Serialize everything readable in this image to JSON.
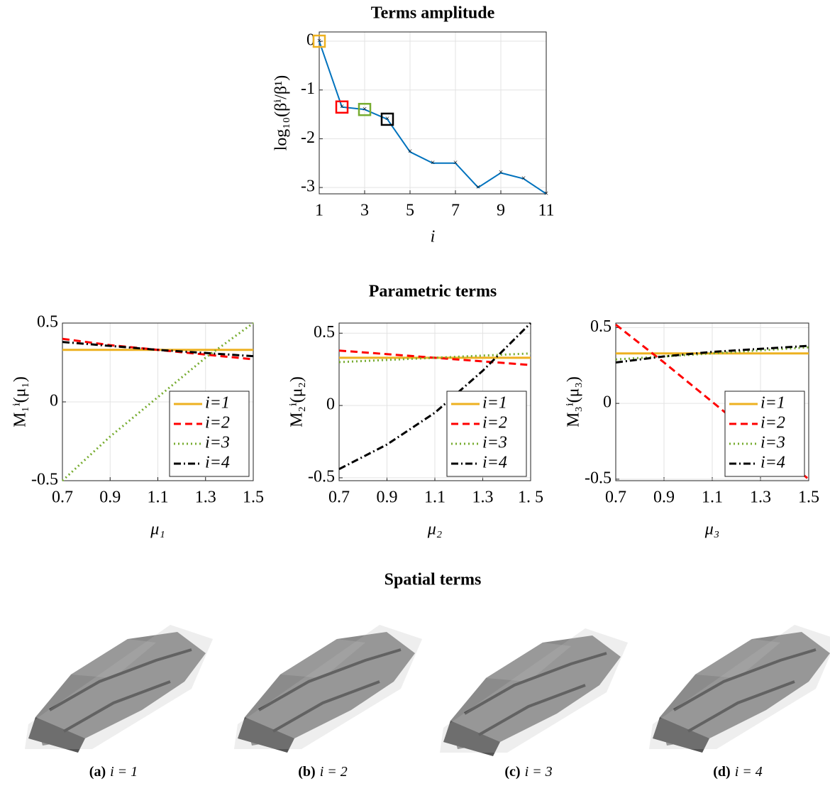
{
  "chart_data": [
    {
      "type": "line",
      "title": "Terms amplitude",
      "xlabel": "i",
      "ylabel": "log₁₀(βⁱ/β¹)",
      "x": [
        1,
        2,
        3,
        4,
        5,
        6,
        7,
        8,
        9,
        10,
        11
      ],
      "series": [
        {
          "color": "#0072bd",
          "values": [
            0,
            -1.35,
            -1.4,
            -1.6,
            -2.27,
            -2.5,
            -2.5,
            -3.0,
            -2.7,
            -2.82,
            -3.13
          ]
        }
      ],
      "highlight_colors": [
        "#edb120",
        "#ff0000",
        "#77ac30",
        "#000000"
      ],
      "xlim": [
        1,
        11
      ],
      "xticks": [
        1,
        3,
        5,
        7,
        9,
        11
      ],
      "ylim": [
        -3.13,
        0.19
      ],
      "yticks": [
        0,
        -1,
        -2,
        -3
      ],
      "grid": true
    },
    {
      "type": "line",
      "xlabel": "μ₁",
      "ylabel": "M₁ⁱ(μ₁)",
      "x": [
        0.7,
        0.9,
        1.1,
        1.3,
        1.5
      ],
      "series": [
        {
          "name": "i=1",
          "color": "#edb120",
          "style": "solid",
          "values": [
            0.33,
            0.33,
            0.33,
            0.33,
            0.33
          ]
        },
        {
          "name": "i=2",
          "color": "#ff0000",
          "style": "dashed",
          "values": [
            0.4,
            0.36,
            0.33,
            0.3,
            0.27
          ]
        },
        {
          "name": "i=3",
          "color": "#77ac30",
          "style": "dotted",
          "values": [
            -0.5,
            -0.22,
            0.03,
            0.28,
            0.5
          ]
        },
        {
          "name": "i=4",
          "color": "#000000",
          "style": "dashdot",
          "values": [
            0.38,
            0.355,
            0.33,
            0.31,
            0.29
          ]
        }
      ],
      "xlim": [
        0.7,
        1.5
      ],
      "xticks": [
        0.7,
        0.9,
        1.1,
        1.3,
        1.5
      ],
      "ylim": [
        -0.5,
        0.5
      ],
      "yticks": [
        0.5,
        0,
        -0.5
      ],
      "grid": true,
      "legend": "lower right"
    },
    {
      "type": "line",
      "xlabel": "μ₂",
      "ylabel": "M₂ⁱ(μ₂)",
      "x": [
        0.7,
        0.9,
        1.1,
        1.3,
        1.5
      ],
      "series": [
        {
          "name": "i=1",
          "color": "#edb120",
          "style": "solid",
          "values": [
            0.33,
            0.33,
            0.33,
            0.33,
            0.33
          ]
        },
        {
          "name": "i=2",
          "color": "#ff0000",
          "style": "dashed",
          "values": [
            0.38,
            0.355,
            0.33,
            0.305,
            0.28
          ]
        },
        {
          "name": "i=3",
          "color": "#77ac30",
          "style": "dotted",
          "values": [
            0.3,
            0.315,
            0.33,
            0.345,
            0.36
          ]
        },
        {
          "name": "i=4",
          "color": "#000000",
          "style": "dashdot",
          "values": [
            -0.44,
            -0.27,
            -0.05,
            0.24,
            0.57
          ]
        }
      ],
      "xlim": [
        0.7,
        1.5
      ],
      "xticks": [
        0.7,
        0.9,
        1.1,
        1.3,
        {
          "value": 1.5,
          "label": "1. 5"
        }
      ],
      "ylim": [
        -0.52,
        0.57
      ],
      "yticks": [
        0.5,
        0,
        -0.5
      ],
      "grid": true,
      "legend": "lower right"
    },
    {
      "type": "line",
      "xlabel": "μ₃",
      "ylabel": "M₃ⁱ(μ₃)",
      "x": [
        0.7,
        0.9,
        1.1,
        1.3,
        1.5
      ],
      "series": [
        {
          "name": "i=1",
          "color": "#edb120",
          "style": "solid",
          "values": [
            0.33,
            0.33,
            0.33,
            0.33,
            0.33
          ]
        },
        {
          "name": "i=2",
          "color": "#ff0000",
          "style": "dashed",
          "values": [
            0.52,
            0.27,
            0.01,
            -0.25,
            -0.5
          ]
        },
        {
          "name": "i=3",
          "color": "#77ac30",
          "style": "dotted",
          "values": [
            0.29,
            0.31,
            0.33,
            0.35,
            0.37
          ]
        },
        {
          "name": "i=4",
          "color": "#000000",
          "style": "dashdot",
          "values": [
            0.27,
            0.31,
            0.34,
            0.36,
            0.38
          ]
        }
      ],
      "xlim": [
        0.7,
        1.5
      ],
      "xticks": [
        0.7,
        0.9,
        1.1,
        1.3,
        1.5
      ],
      "ylim": [
        -0.51,
        0.53
      ],
      "yticks": [
        0.5,
        0,
        -0.5
      ],
      "grid": true,
      "legend": "lower right"
    }
  ],
  "figure": {
    "parametric_heading": "Parametric terms",
    "spatial_heading": "Spatial terms",
    "captions": [
      {
        "tag": "(a)",
        "text": "i = 1"
      },
      {
        "tag": "(b)",
        "text": "i = 2"
      },
      {
        "tag": "(c)",
        "text": "i = 3"
      },
      {
        "tag": "(d)",
        "text": "i = 4"
      }
    ]
  }
}
